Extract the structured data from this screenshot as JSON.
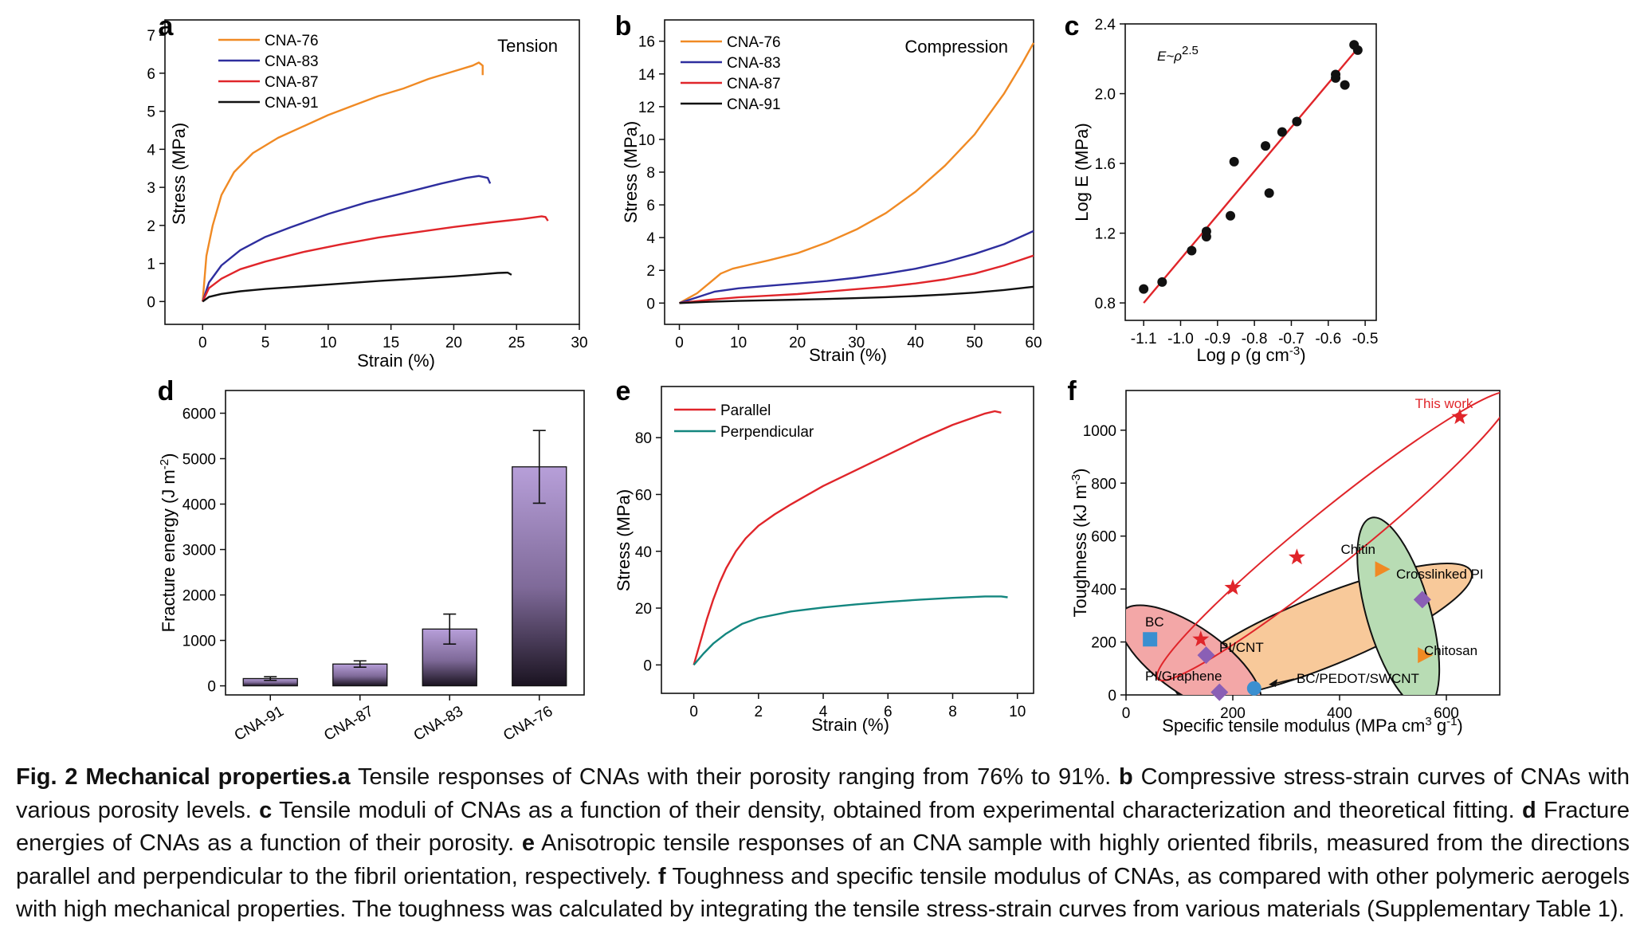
{
  "chart_data": [
    {
      "panel": "a",
      "type": "line",
      "annotation": "Tension",
      "xlabel": "Strain (%)",
      "ylabel": "Stress (MPa)",
      "xlim": [
        -3,
        30
      ],
      "ylim": [
        -0.6,
        7.4
      ],
      "xticks": [
        0,
        5,
        10,
        15,
        20,
        25,
        30
      ],
      "yticks": [
        0,
        1,
        2,
        3,
        4,
        5,
        6,
        7
      ],
      "legend": "top-left",
      "series": [
        {
          "name": "CNA-76",
          "color": "#f08a24",
          "points": [
            [
              0,
              0
            ],
            [
              0.3,
              1.2
            ],
            [
              0.8,
              2.0
            ],
            [
              1.5,
              2.8
            ],
            [
              2.5,
              3.4
            ],
            [
              4,
              3.9
            ],
            [
              6,
              4.3
            ],
            [
              8,
              4.6
            ],
            [
              10,
              4.9
            ],
            [
              12,
              5.15
            ],
            [
              14,
              5.4
            ],
            [
              16,
              5.6
            ],
            [
              18,
              5.85
            ],
            [
              20,
              6.05
            ],
            [
              21.5,
              6.2
            ],
            [
              22,
              6.28
            ],
            [
              22.3,
              6.2
            ],
            [
              22.3,
              5.95
            ]
          ]
        },
        {
          "name": "CNA-83",
          "color": "#2e2e9e",
          "points": [
            [
              0,
              0
            ],
            [
              0.5,
              0.5
            ],
            [
              1.5,
              0.95
            ],
            [
              3,
              1.35
            ],
            [
              5,
              1.7
            ],
            [
              7,
              1.95
            ],
            [
              10,
              2.3
            ],
            [
              13,
              2.6
            ],
            [
              16,
              2.85
            ],
            [
              19,
              3.1
            ],
            [
              21,
              3.25
            ],
            [
              22,
              3.3
            ],
            [
              22.7,
              3.25
            ],
            [
              22.9,
              3.1
            ]
          ]
        },
        {
          "name": "CNA-87",
          "color": "#e0252a",
          "points": [
            [
              0,
              0
            ],
            [
              0.5,
              0.35
            ],
            [
              1.5,
              0.6
            ],
            [
              3,
              0.85
            ],
            [
              5,
              1.05
            ],
            [
              8,
              1.3
            ],
            [
              11,
              1.5
            ],
            [
              14,
              1.68
            ],
            [
              17,
              1.82
            ],
            [
              20,
              1.96
            ],
            [
              23,
              2.08
            ],
            [
              25.5,
              2.17
            ],
            [
              27,
              2.24
            ],
            [
              27.3,
              2.22
            ],
            [
              27.5,
              2.12
            ]
          ]
        },
        {
          "name": "CNA-91",
          "color": "#111111",
          "points": [
            [
              0,
              0
            ],
            [
              0.5,
              0.12
            ],
            [
              1.5,
              0.2
            ],
            [
              3,
              0.27
            ],
            [
              5,
              0.33
            ],
            [
              8,
              0.4
            ],
            [
              11,
              0.47
            ],
            [
              14,
              0.54
            ],
            [
              17,
              0.6
            ],
            [
              20,
              0.66
            ],
            [
              22,
              0.71
            ],
            [
              23.5,
              0.75
            ],
            [
              24.3,
              0.76
            ],
            [
              24.6,
              0.7
            ]
          ]
        }
      ]
    },
    {
      "panel": "b",
      "type": "line",
      "annotation": "Compression",
      "xlabel": "Strain (%)",
      "ylabel": "Stress (MPa)",
      "xlim": [
        -2.5,
        60
      ],
      "ylim": [
        -1.3,
        17.3
      ],
      "xticks": [
        0,
        10,
        20,
        30,
        40,
        50,
        60
      ],
      "yticks": [
        0,
        2,
        4,
        6,
        8,
        10,
        12,
        14,
        16
      ],
      "legend": "top-left",
      "series": [
        {
          "name": "CNA-76",
          "color": "#f08a24",
          "points": [
            [
              0,
              0
            ],
            [
              3,
              0.6
            ],
            [
              5,
              1.2
            ],
            [
              7,
              1.8
            ],
            [
              9,
              2.1
            ],
            [
              12,
              2.35
            ],
            [
              15,
              2.6
            ],
            [
              20,
              3.05
            ],
            [
              25,
              3.7
            ],
            [
              30,
              4.5
            ],
            [
              35,
              5.5
            ],
            [
              40,
              6.8
            ],
            [
              45,
              8.4
            ],
            [
              50,
              10.3
            ],
            [
              55,
              12.8
            ],
            [
              58,
              14.6
            ],
            [
              60,
              15.9
            ]
          ]
        },
        {
          "name": "CNA-83",
          "color": "#2e2e9e",
          "points": [
            [
              0,
              0
            ],
            [
              3,
              0.35
            ],
            [
              6,
              0.7
            ],
            [
              10,
              0.9
            ],
            [
              15,
              1.05
            ],
            [
              20,
              1.2
            ],
            [
              25,
              1.35
            ],
            [
              30,
              1.55
            ],
            [
              35,
              1.8
            ],
            [
              40,
              2.1
            ],
            [
              45,
              2.5
            ],
            [
              50,
              3.0
            ],
            [
              55,
              3.6
            ],
            [
              60,
              4.4
            ]
          ]
        },
        {
          "name": "CNA-87",
          "color": "#e0252a",
          "points": [
            [
              0,
              0
            ],
            [
              5,
              0.2
            ],
            [
              10,
              0.35
            ],
            [
              15,
              0.45
            ],
            [
              20,
              0.55
            ],
            [
              25,
              0.7
            ],
            [
              30,
              0.85
            ],
            [
              35,
              1.0
            ],
            [
              40,
              1.2
            ],
            [
              45,
              1.45
            ],
            [
              50,
              1.8
            ],
            [
              55,
              2.3
            ],
            [
              60,
              2.9
            ]
          ]
        },
        {
          "name": "CNA-91",
          "color": "#111111",
          "points": [
            [
              0,
              0
            ],
            [
              5,
              0.08
            ],
            [
              10,
              0.13
            ],
            [
              15,
              0.17
            ],
            [
              20,
              0.21
            ],
            [
              25,
              0.25
            ],
            [
              30,
              0.3
            ],
            [
              35,
              0.36
            ],
            [
              40,
              0.43
            ],
            [
              45,
              0.52
            ],
            [
              50,
              0.64
            ],
            [
              55,
              0.8
            ],
            [
              60,
              1.0
            ]
          ]
        }
      ]
    },
    {
      "panel": "c",
      "type": "scatter",
      "annotation": "E~ρ",
      "annotation_sup": "2.5",
      "xlabel": "Log ρ (g cm",
      "xlabel_sup": "-3",
      "xlabel_end": ")",
      "ylabel": "Log E (MPa)",
      "xlim": [
        -1.15,
        -0.47
      ],
      "ylim": [
        0.7,
        2.4
      ],
      "xticks": [
        -1.1,
        -1.0,
        -0.9,
        -0.8,
        -0.7,
        -0.6,
        -0.5
      ],
      "xtick_labels": [
        "-1.1",
        "-1.0",
        "-0.9",
        "-0.8",
        "-0.7",
        "-0.6",
        "-0.5"
      ],
      "yticks": [
        0.8,
        1.2,
        1.6,
        2.0,
        2.4
      ],
      "ytick_labels": [
        "0.8",
        "1.2",
        "1.6",
        "2.0",
        "2.4"
      ],
      "points": [
        [
          -1.1,
          0.88
        ],
        [
          -1.05,
          0.92
        ],
        [
          -0.97,
          1.1
        ],
        [
          -0.93,
          1.18
        ],
        [
          -0.93,
          1.21
        ],
        [
          -0.865,
          1.3
        ],
        [
          -0.855,
          1.61
        ],
        [
          -0.77,
          1.7
        ],
        [
          -0.76,
          1.43
        ],
        [
          -0.725,
          1.78
        ],
        [
          -0.685,
          1.84
        ],
        [
          -0.58,
          2.09
        ],
        [
          -0.58,
          2.11
        ],
        [
          -0.555,
          2.05
        ],
        [
          -0.53,
          2.28
        ],
        [
          -0.52,
          2.25
        ]
      ],
      "fit": {
        "color": "#e0252a",
        "points": [
          [
            -1.1,
            0.8
          ],
          [
            -0.52,
            2.26
          ]
        ]
      }
    },
    {
      "panel": "d",
      "type": "bar",
      "xlabel": "",
      "ylabel": "Fracture energy (J m",
      "ylabel_sup": "-2",
      "ylabel_end": ")",
      "ylim": [
        -200,
        6500
      ],
      "yticks": [
        0,
        1000,
        2000,
        3000,
        4000,
        5000,
        6000
      ],
      "categories": [
        "CNA-91",
        "CNA-87",
        "CNA-83",
        "CNA-76"
      ],
      "values": [
        160,
        480,
        1250,
        4820
      ],
      "errors": [
        40,
        70,
        330,
        800
      ]
    },
    {
      "panel": "e",
      "type": "line",
      "xlabel": "Strain (%)",
      "ylabel": "Stress (MPa)",
      "xlim": [
        -1,
        10.5
      ],
      "ylim": [
        -10,
        98
      ],
      "xticks": [
        0,
        2,
        4,
        6,
        8,
        10
      ],
      "yticks": [
        0,
        20,
        40,
        60,
        80
      ],
      "legend": "top-left",
      "series": [
        {
          "name": "Parallel",
          "color": "#e0252a",
          "points": [
            [
              0,
              0
            ],
            [
              0.2,
              8
            ],
            [
              0.4,
              16
            ],
            [
              0.6,
              23
            ],
            [
              0.8,
              29
            ],
            [
              1.0,
              34
            ],
            [
              1.3,
              40
            ],
            [
              1.6,
              44.5
            ],
            [
              2.0,
              49
            ],
            [
              2.5,
              53
            ],
            [
              3,
              56.5
            ],
            [
              4,
              63
            ],
            [
              5,
              68.5
            ],
            [
              6,
              74
            ],
            [
              7,
              79.5
            ],
            [
              8,
              84.5
            ],
            [
              9,
              88.5
            ],
            [
              9.3,
              89.3
            ],
            [
              9.5,
              88.8
            ]
          ]
        },
        {
          "name": "Perpendicular",
          "color": "#13867f",
          "points": [
            [
              0,
              0
            ],
            [
              0.3,
              4
            ],
            [
              0.6,
              7.5
            ],
            [
              1.0,
              11
            ],
            [
              1.5,
              14.5
            ],
            [
              2.0,
              16.5
            ],
            [
              3,
              18.8
            ],
            [
              4,
              20.2
            ],
            [
              5,
              21.3
            ],
            [
              6,
              22.2
            ],
            [
              7,
              23
            ],
            [
              8,
              23.6
            ],
            [
              9,
              24.1
            ],
            [
              9.5,
              24.1
            ],
            [
              9.7,
              23.8
            ]
          ]
        }
      ]
    },
    {
      "panel": "f",
      "type": "scatter",
      "xlabel": "Specific tensile modulus (MPa cm",
      "xlabel_sup": "3",
      "xlabel_mid": " g",
      "xlabel_sup2": "-1",
      "xlabel_end": ")",
      "ylabel": "Toughness (kJ m",
      "ylabel_sup": "-3",
      "ylabel_end": ")",
      "xlim": [
        0,
        700
      ],
      "ylim": [
        0,
        1150
      ],
      "xticks": [
        0,
        200,
        400,
        600
      ],
      "yticks": [
        0,
        200,
        400,
        600,
        800,
        1000
      ],
      "this_work": {
        "label": "This work",
        "color": "#e0252a",
        "points": [
          [
            140,
            210
          ],
          [
            200,
            405
          ],
          [
            320,
            520
          ],
          [
            625,
            1050
          ]
        ]
      },
      "materials": [
        {
          "label": "BC",
          "marker": "square",
          "color": "#3a8fd0",
          "x": 45,
          "y": 210
        },
        {
          "label": "PI/CNT",
          "marker": "diamond",
          "color": "#8a5fb5",
          "x": 150,
          "y": 150
        },
        {
          "label": "PI/Graphene",
          "marker": "diamond",
          "color": "#8a5fb5",
          "x": 175,
          "y": 10
        },
        {
          "label": "BC/PEDOT/SWCNT",
          "marker": "circle",
          "color": "#3a8fd0",
          "x": 240,
          "y": 25
        },
        {
          "label": "Chitin",
          "marker": "triangle",
          "color": "#f08a24",
          "x": 480,
          "y": 475
        },
        {
          "label": "Crosslinked PI",
          "marker": "diamond",
          "color": "#8a5fb5",
          "x": 555,
          "y": 360
        },
        {
          "label": "Chitosan",
          "marker": "triangle",
          "color": "#f08a24",
          "x": 560,
          "y": 150
        }
      ],
      "regions": [
        {
          "name": "this-work-region",
          "fill": "none",
          "stroke": "#e0252a"
        },
        {
          "name": "pi-region",
          "fill": "#f8c99a",
          "stroke": "#111111"
        },
        {
          "name": "bc-region",
          "fill": "#f3a7a7",
          "stroke": "#111111"
        },
        {
          "name": "chitin-region",
          "fill": "#b8dcb4",
          "stroke": "#111111"
        }
      ]
    }
  ],
  "panels": {
    "a": "a",
    "b": "b",
    "c": "c",
    "d": "d",
    "e": "e",
    "f": "f"
  },
  "caption": {
    "lead": "Fig. 2 Mechanical properties.",
    "segments": [
      {
        "letter": "a",
        "text": " Tensile responses of CNAs with their porosity ranging from 76% to 91%. "
      },
      {
        "letter": "b",
        "text": " Compressive stress-strain curves of CNAs with various porosity levels. "
      },
      {
        "letter": "c",
        "text": " Tensile moduli of CNAs as a function of their density, obtained from experimental characterization and theoretical fitting. "
      },
      {
        "letter": "d",
        "text": " Fracture energies of CNAs as a function of their porosity. "
      },
      {
        "letter": "e",
        "text": " Anisotropic tensile responses of an CNA sample with highly oriented fibrils, measured from the directions parallel and perpendicular to the fibril orientation, respectively. "
      },
      {
        "letter": "f",
        "text": " Toughness and specific tensile modulus of CNAs, as compared with other polymeric aerogels with high mechanical properties. The toughness was calculated by integrating the tensile stress-strain curves from various materials (Supplementary Table 1)."
      }
    ]
  }
}
